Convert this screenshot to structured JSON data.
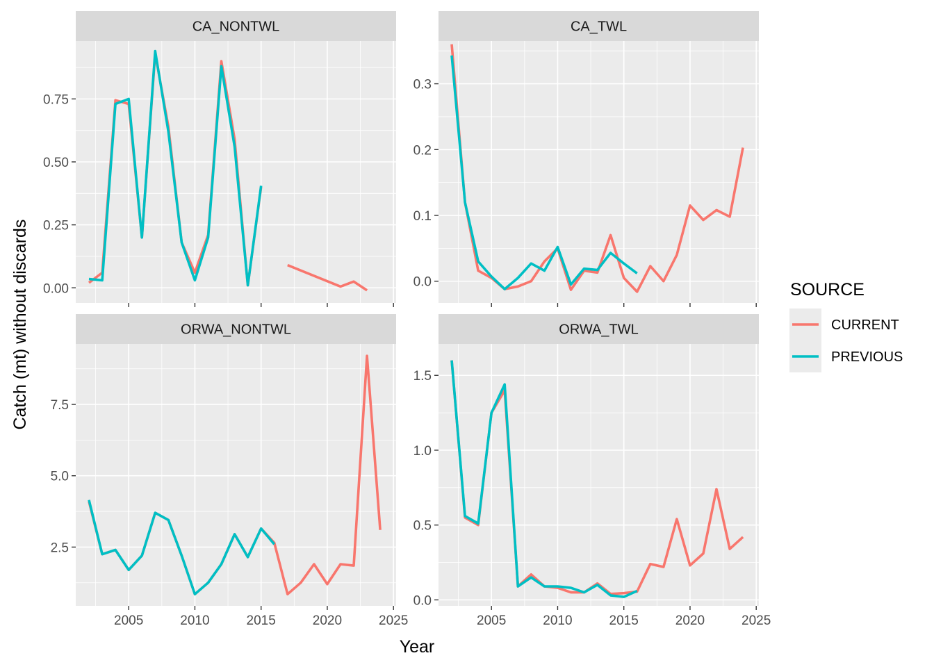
{
  "chart_data": {
    "type": "line",
    "xlabel": "Year",
    "ylabel": "Catch (mt) without discards",
    "xlim": [
      2001.0,
      2025.2
    ],
    "x_ticks": [
      2005,
      2010,
      2015,
      2020,
      2025
    ],
    "x_tick_labels": [
      "2005",
      "2010",
      "2015",
      "2020",
      "2025"
    ],
    "legend": {
      "title": "SOURCE",
      "position": "right",
      "entries": [
        {
          "label": "CURRENT",
          "color": "#F8766D"
        },
        {
          "label": "PREVIOUS",
          "color": "#00BFC4"
        }
      ]
    },
    "panels": [
      {
        "title": "CA_NONTWL",
        "ylim": [
          -0.06,
          0.98
        ],
        "y_ticks": [
          0,
          0.25,
          0.5,
          0.75
        ],
        "y_tick_labels": [
          "0.00",
          "0.25",
          "0.50",
          "0.75"
        ],
        "show_x_labels": false,
        "series": [
          {
            "name": "CURRENT",
            "color": "#F8766D",
            "segments": [
              [
                [
                  2002,
                  0.02
                ],
                [
                  2003,
                  0.06
                ],
                [
                  2004,
                  0.745
                ],
                [
                  2005,
                  0.73
                ],
                [
                  2006,
                  0.2
                ],
                [
                  2007,
                  0.93
                ],
                [
                  2008,
                  0.64
                ],
                [
                  2009,
                  0.18
                ],
                [
                  2010,
                  0.06
                ],
                [
                  2011,
                  0.21
                ],
                [
                  2012,
                  0.9
                ],
                [
                  2013,
                  0.59
                ],
                [
                  2014,
                  0.01
                ],
                [
                  2015,
                  0.4
                ]
              ],
              [
                [
                  2017,
                  0.09
                ],
                [
                  2021,
                  0.005
                ],
                [
                  2022,
                  0.025
                ],
                [
                  2023,
                  -0.01
                ]
              ]
            ]
          },
          {
            "name": "PREVIOUS",
            "color": "#00BFC4",
            "segments": [
              [
                [
                  2002,
                  0.035
                ],
                [
                  2003,
                  0.03
                ],
                [
                  2004,
                  0.73
                ],
                [
                  2005,
                  0.75
                ],
                [
                  2006,
                  0.2
                ],
                [
                  2007,
                  0.94
                ],
                [
                  2008,
                  0.62
                ],
                [
                  2009,
                  0.18
                ],
                [
                  2010,
                  0.03
                ],
                [
                  2011,
                  0.2
                ],
                [
                  2012,
                  0.88
                ],
                [
                  2013,
                  0.56
                ],
                [
                  2014,
                  0.01
                ],
                [
                  2015,
                  0.405
                ]
              ]
            ]
          }
        ]
      },
      {
        "title": "CA_TWL",
        "ylim": [
          -0.033,
          0.365
        ],
        "y_ticks": [
          0,
          0.1,
          0.2,
          0.3
        ],
        "y_tick_labels": [
          "0.0",
          "0.1",
          "0.2",
          "0.3"
        ],
        "show_x_labels": false,
        "series": [
          {
            "name": "CURRENT",
            "color": "#F8766D",
            "segments": [
              [
                [
                  2002,
                  0.36
                ],
                [
                  2003,
                  0.12
                ],
                [
                  2004,
                  0.016
                ],
                [
                  2005,
                  0.005
                ],
                [
                  2006,
                  -0.012
                ],
                [
                  2007,
                  -0.008
                ],
                [
                  2008,
                  0.0
                ],
                [
                  2009,
                  0.03
                ],
                [
                  2010,
                  0.05
                ],
                [
                  2011,
                  -0.013
                ],
                [
                  2012,
                  0.016
                ],
                [
                  2013,
                  0.013
                ],
                [
                  2014,
                  0.07
                ],
                [
                  2015,
                  0.005
                ],
                [
                  2016,
                  -0.016
                ],
                [
                  2017,
                  0.023
                ],
                [
                  2018,
                  0.0
                ],
                [
                  2019,
                  0.04
                ],
                [
                  2020,
                  0.115
                ],
                [
                  2021,
                  0.093
                ],
                [
                  2022,
                  0.108
                ],
                [
                  2023,
                  0.098
                ],
                [
                  2024,
                  0.203
                ]
              ]
            ]
          },
          {
            "name": "PREVIOUS",
            "color": "#00BFC4",
            "segments": [
              [
                [
                  2002,
                  0.343
                ],
                [
                  2003,
                  0.12
                ],
                [
                  2004,
                  0.03
                ],
                [
                  2005,
                  0.007
                ],
                [
                  2006,
                  -0.012
                ],
                [
                  2007,
                  0.005
                ],
                [
                  2008,
                  0.027
                ],
                [
                  2009,
                  0.016
                ],
                [
                  2010,
                  0.052
                ],
                [
                  2011,
                  -0.005
                ],
                [
                  2012,
                  0.019
                ],
                [
                  2013,
                  0.017
                ],
                [
                  2014,
                  0.043
                ],
                [
                  2015,
                  0.027
                ],
                [
                  2016,
                  0.012
                ]
              ]
            ]
          }
        ]
      },
      {
        "title": "ORWA_NONTWL",
        "ylim": [
          0.44,
          9.62
        ],
        "y_ticks": [
          2.5,
          5.0,
          7.5
        ],
        "y_tick_labels": [
          "2.5",
          "5.0",
          "7.5"
        ],
        "show_x_labels": true,
        "series": [
          {
            "name": "CURRENT",
            "color": "#F8766D",
            "segments": [
              [
                [
                  2002,
                  4.1
                ],
                [
                  2003,
                  2.25
                ],
                [
                  2004,
                  2.4
                ],
                [
                  2005,
                  1.7
                ],
                [
                  2006,
                  2.2
                ],
                [
                  2007,
                  3.7
                ],
                [
                  2008,
                  3.45
                ],
                [
                  2009,
                  2.2
                ],
                [
                  2010,
                  0.85
                ],
                [
                  2011,
                  1.25
                ],
                [
                  2012,
                  1.9
                ],
                [
                  2013,
                  2.95
                ],
                [
                  2014,
                  2.15
                ],
                [
                  2015,
                  3.15
                ],
                [
                  2016,
                  2.65
                ],
                [
                  2017,
                  0.85
                ],
                [
                  2018,
                  1.25
                ],
                [
                  2019,
                  1.9
                ],
                [
                  2020,
                  1.2
                ],
                [
                  2021,
                  1.9
                ],
                [
                  2022,
                  1.85
                ],
                [
                  2023,
                  9.2
                ],
                [
                  2024,
                  3.1
                ]
              ]
            ]
          },
          {
            "name": "PREVIOUS",
            "color": "#00BFC4",
            "segments": [
              [
                [
                  2002,
                  4.15
                ],
                [
                  2003,
                  2.25
                ],
                [
                  2004,
                  2.4
                ],
                [
                  2005,
                  1.7
                ],
                [
                  2006,
                  2.2
                ],
                [
                  2007,
                  3.7
                ],
                [
                  2008,
                  3.45
                ],
                [
                  2009,
                  2.2
                ],
                [
                  2010,
                  0.85
                ],
                [
                  2011,
                  1.25
                ],
                [
                  2012,
                  1.9
                ],
                [
                  2013,
                  2.95
                ],
                [
                  2014,
                  2.15
                ],
                [
                  2015,
                  3.15
                ],
                [
                  2016,
                  2.6
                ]
              ]
            ]
          }
        ]
      },
      {
        "title": "ORWA_TWL",
        "ylim": [
          -0.04,
          1.71
        ],
        "y_ticks": [
          0,
          0.5,
          1.0,
          1.5
        ],
        "y_tick_labels": [
          "0.0",
          "0.5",
          "1.0",
          "1.5"
        ],
        "show_x_labels": true,
        "series": [
          {
            "name": "CURRENT",
            "color": "#F8766D",
            "segments": [
              [
                [
                  2002,
                  1.6
                ],
                [
                  2003,
                  0.55
                ],
                [
                  2004,
                  0.5
                ],
                [
                  2005,
                  1.25
                ],
                [
                  2006,
                  1.4
                ],
                [
                  2007,
                  0.09
                ],
                [
                  2008,
                  0.17
                ],
                [
                  2009,
                  0.09
                ],
                [
                  2010,
                  0.08
                ],
                [
                  2011,
                  0.05
                ],
                [
                  2012,
                  0.05
                ],
                [
                  2013,
                  0.11
                ],
                [
                  2014,
                  0.04
                ],
                [
                  2015,
                  0.045
                ],
                [
                  2016,
                  0.055
                ],
                [
                  2017,
                  0.24
                ],
                [
                  2018,
                  0.22
                ],
                [
                  2019,
                  0.54
                ],
                [
                  2020,
                  0.23
                ],
                [
                  2021,
                  0.31
                ],
                [
                  2022,
                  0.74
                ],
                [
                  2023,
                  0.34
                ],
                [
                  2024,
                  0.42
                ]
              ]
            ]
          },
          {
            "name": "PREVIOUS",
            "color": "#00BFC4",
            "segments": [
              [
                [
                  2002,
                  1.6
                ],
                [
                  2003,
                  0.56
                ],
                [
                  2004,
                  0.51
                ],
                [
                  2005,
                  1.25
                ],
                [
                  2006,
                  1.44
                ],
                [
                  2007,
                  0.09
                ],
                [
                  2008,
                  0.15
                ],
                [
                  2009,
                  0.09
                ],
                [
                  2010,
                  0.09
                ],
                [
                  2011,
                  0.08
                ],
                [
                  2012,
                  0.05
                ],
                [
                  2013,
                  0.1
                ],
                [
                  2014,
                  0.03
                ],
                [
                  2015,
                  0.02
                ],
                [
                  2016,
                  0.06
                ]
              ]
            ]
          }
        ]
      }
    ]
  }
}
